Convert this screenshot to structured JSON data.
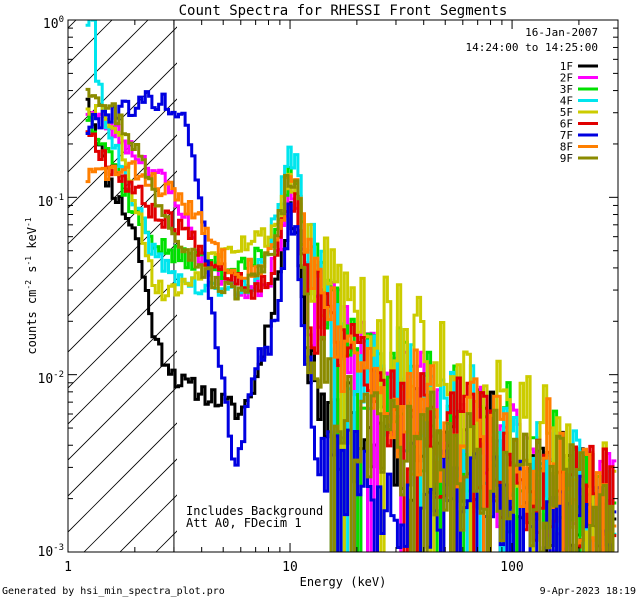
{
  "chart_data": {
    "type": "line",
    "title": "Count Spectra for RHESSI Front Segments",
    "xlabel": "Energy (keV)",
    "ylabel_parts": [
      "counts cm",
      "-2",
      " s",
      "-1",
      " keV",
      "-1"
    ],
    "xscale": "log",
    "yscale": "log",
    "xlim": [
      1,
      300
    ],
    "ylim": [
      0.001,
      1
    ],
    "x_ticks": [
      {
        "value": 1,
        "label": "1"
      },
      {
        "value": 10,
        "label": "10"
      },
      {
        "value": 100,
        "label": "100"
      }
    ],
    "y_ticks": [
      {
        "value": 0.001,
        "base": "10",
        "exp": "-3"
      },
      {
        "value": 0.01,
        "base": "10",
        "exp": "-2"
      },
      {
        "value": 0.1,
        "base": "10",
        "exp": "-1"
      },
      {
        "value": 1,
        "base": "10",
        "exp": "0"
      }
    ],
    "shaded_region": {
      "x0": 1,
      "x1": 3,
      "pattern": "diagonal-hatch"
    },
    "date": "16-Jan-2007",
    "time_range": "14:24:00 to 14:25:00",
    "annotations": [
      "Includes Background",
      "Att A0, FDecim 1"
    ],
    "legend_position": "top-right",
    "series": [
      {
        "name": "1F",
        "color": "#000000",
        "anchors": [
          [
            1.2,
            0.42
          ],
          [
            1.5,
            0.13
          ],
          [
            2.0,
            0.065
          ],
          [
            2.5,
            0.015
          ],
          [
            3.2,
            0.009
          ],
          [
            4.0,
            0.008
          ],
          [
            5.0,
            0.007
          ],
          [
            6.0,
            0.006
          ],
          [
            7.0,
            0.009
          ],
          [
            8.0,
            0.02
          ],
          [
            9.0,
            0.04
          ],
          [
            10.0,
            0.08
          ],
          [
            10.8,
            0.07
          ],
          [
            12.0,
            0.012
          ],
          [
            15.0,
            0.006
          ],
          [
            20.0,
            0.0045
          ],
          [
            30.0,
            0.004
          ],
          [
            40.0,
            0.004
          ],
          [
            60.0,
            0.004
          ],
          [
            100.0,
            0.003
          ],
          [
            150.0,
            0.0025
          ],
          [
            200.0,
            0.002
          ],
          [
            280.0,
            0.0012
          ]
        ],
        "seed": 11
      },
      {
        "name": "2F",
        "color": "#ff00ff",
        "anchors": [
          [
            1.2,
            0.32
          ],
          [
            1.5,
            0.26
          ],
          [
            2.0,
            0.18
          ],
          [
            2.5,
            0.14
          ],
          [
            3.2,
            0.09
          ],
          [
            4.0,
            0.045
          ],
          [
            5.0,
            0.035
          ],
          [
            6.0,
            0.03
          ],
          [
            7.0,
            0.03
          ],
          [
            8.0,
            0.035
          ],
          [
            9.0,
            0.06
          ],
          [
            10.0,
            0.12
          ],
          [
            10.8,
            0.1
          ],
          [
            12.0,
            0.03
          ],
          [
            15.0,
            0.02
          ],
          [
            20.0,
            0.012
          ],
          [
            30.0,
            0.008
          ],
          [
            40.0,
            0.006
          ],
          [
            60.0,
            0.004
          ],
          [
            100.0,
            0.003
          ],
          [
            150.0,
            0.0022
          ],
          [
            200.0,
            0.0018
          ],
          [
            280.0,
            0.0015
          ]
        ],
        "seed": 23
      },
      {
        "name": "3F",
        "color": "#00e000",
        "anchors": [
          [
            1.2,
            0.3
          ],
          [
            1.5,
            0.2
          ],
          [
            2.0,
            0.08
          ],
          [
            2.5,
            0.055
          ],
          [
            3.2,
            0.045
          ],
          [
            4.0,
            0.045
          ],
          [
            5.0,
            0.04
          ],
          [
            6.0,
            0.04
          ],
          [
            7.0,
            0.045
          ],
          [
            8.0,
            0.05
          ],
          [
            9.0,
            0.08
          ],
          [
            10.0,
            0.15
          ],
          [
            10.8,
            0.13
          ],
          [
            12.0,
            0.04
          ],
          [
            15.0,
            0.02
          ],
          [
            20.0,
            0.012
          ],
          [
            30.0,
            0.008
          ],
          [
            40.0,
            0.006
          ],
          [
            60.0,
            0.005
          ],
          [
            100.0,
            0.004
          ],
          [
            150.0,
            0.0028
          ],
          [
            200.0,
            0.002
          ],
          [
            280.0,
            0.0015
          ]
        ],
        "seed": 37
      },
      {
        "name": "4F",
        "color": "#00e5ee",
        "anchors": [
          [
            1.2,
            1.0
          ],
          [
            1.3,
            1.0
          ],
          [
            1.35,
            0.5
          ],
          [
            1.6,
            0.2
          ],
          [
            2.0,
            0.09
          ],
          [
            2.5,
            0.045
          ],
          [
            3.2,
            0.035
          ],
          [
            4.0,
            0.03
          ],
          [
            5.0,
            0.03
          ],
          [
            6.0,
            0.03
          ],
          [
            7.0,
            0.035
          ],
          [
            8.0,
            0.05
          ],
          [
            9.0,
            0.09
          ],
          [
            10.0,
            0.18
          ],
          [
            10.8,
            0.15
          ],
          [
            12.0,
            0.05
          ],
          [
            15.0,
            0.02
          ],
          [
            20.0,
            0.01
          ],
          [
            30.0,
            0.008
          ],
          [
            40.0,
            0.007
          ],
          [
            60.0,
            0.005
          ],
          [
            100.0,
            0.004
          ],
          [
            150.0,
            0.0028
          ],
          [
            200.0,
            0.002
          ],
          [
            280.0,
            0.0015
          ]
        ],
        "seed": 41
      },
      {
        "name": "5F",
        "color": "#cccc00",
        "anchors": [
          [
            1.2,
            0.34
          ],
          [
            1.5,
            0.3
          ],
          [
            1.8,
            0.18
          ],
          [
            2.0,
            0.1
          ],
          [
            2.5,
            0.03
          ],
          [
            3.2,
            0.03
          ],
          [
            4.0,
            0.04
          ],
          [
            5.0,
            0.055
          ],
          [
            6.0,
            0.055
          ],
          [
            7.0,
            0.06
          ],
          [
            8.0,
            0.06
          ],
          [
            9.0,
            0.08
          ],
          [
            10.0,
            0.14
          ],
          [
            10.8,
            0.1
          ],
          [
            12.0,
            0.04
          ],
          [
            15.0,
            0.03
          ],
          [
            20.0,
            0.025
          ],
          [
            30.0,
            0.018
          ],
          [
            40.0,
            0.012
          ],
          [
            60.0,
            0.008
          ],
          [
            100.0,
            0.005
          ],
          [
            150.0,
            0.004
          ],
          [
            200.0,
            0.003
          ],
          [
            280.0,
            0.002
          ]
        ],
        "seed": 53
      },
      {
        "name": "6F",
        "color": "#e00000",
        "anchors": [
          [
            1.2,
            0.26
          ],
          [
            1.5,
            0.16
          ],
          [
            2.0,
            0.11
          ],
          [
            2.5,
            0.08
          ],
          [
            3.2,
            0.07
          ],
          [
            4.0,
            0.05
          ],
          [
            5.0,
            0.04
          ],
          [
            6.0,
            0.035
          ],
          [
            7.0,
            0.03
          ],
          [
            8.0,
            0.035
          ],
          [
            9.0,
            0.06
          ],
          [
            10.0,
            0.1
          ],
          [
            10.8,
            0.09
          ],
          [
            12.0,
            0.03
          ],
          [
            15.0,
            0.015
          ],
          [
            20.0,
            0.01
          ],
          [
            30.0,
            0.006
          ],
          [
            40.0,
            0.005
          ],
          [
            60.0,
            0.004
          ],
          [
            100.0,
            0.003
          ],
          [
            150.0,
            0.0025
          ],
          [
            200.0,
            0.002
          ],
          [
            280.0,
            0.0015
          ]
        ],
        "seed": 67
      },
      {
        "name": "7F",
        "color": "#0000e0",
        "anchors": [
          [
            1.2,
            0.24
          ],
          [
            1.5,
            0.3
          ],
          [
            2.0,
            0.33
          ],
          [
            2.5,
            0.36
          ],
          [
            3.2,
            0.3
          ],
          [
            3.6,
            0.2
          ],
          [
            4.0,
            0.09
          ],
          [
            4.5,
            0.02
          ],
          [
            5.0,
            0.01
          ],
          [
            5.5,
            0.003
          ],
          [
            6.0,
            0.004
          ],
          [
            6.5,
            0.007
          ],
          [
            7.0,
            0.012
          ],
          [
            8.0,
            0.014
          ],
          [
            9.0,
            0.03
          ],
          [
            10.0,
            0.08
          ],
          [
            10.8,
            0.06
          ],
          [
            12.0,
            0.008
          ],
          [
            15.0,
            0.003
          ],
          [
            20.0,
            0.0025
          ],
          [
            30.0,
            0.002
          ],
          [
            40.0,
            0.002
          ],
          [
            60.0,
            0.0018
          ],
          [
            100.0,
            0.0016
          ],
          [
            150.0,
            0.0014
          ],
          [
            200.0,
            0.0013
          ],
          [
            280.0,
            0.0012
          ]
        ],
        "seed": 79
      },
      {
        "name": "8F",
        "color": "#ff7f00",
        "anchors": [
          [
            1.2,
            0.13
          ],
          [
            1.5,
            0.14
          ],
          [
            2.0,
            0.14
          ],
          [
            2.5,
            0.12
          ],
          [
            3.2,
            0.1
          ],
          [
            4.0,
            0.07
          ],
          [
            5.0,
            0.045
          ],
          [
            6.0,
            0.04
          ],
          [
            7.0,
            0.04
          ],
          [
            8.0,
            0.045
          ],
          [
            9.0,
            0.07
          ],
          [
            10.0,
            0.15
          ],
          [
            10.8,
            0.13
          ],
          [
            12.0,
            0.04
          ],
          [
            15.0,
            0.02
          ],
          [
            20.0,
            0.01
          ],
          [
            30.0,
            0.007
          ],
          [
            40.0,
            0.006
          ],
          [
            60.0,
            0.005
          ],
          [
            100.0,
            0.004
          ],
          [
            150.0,
            0.003
          ],
          [
            200.0,
            0.0022
          ],
          [
            280.0,
            0.0015
          ]
        ],
        "seed": 83
      },
      {
        "name": "9F",
        "color": "#8b8b00",
        "anchors": [
          [
            1.2,
            0.44
          ],
          [
            1.5,
            0.35
          ],
          [
            2.0,
            0.2
          ],
          [
            2.5,
            0.1
          ],
          [
            3.2,
            0.06
          ],
          [
            4.0,
            0.04
          ],
          [
            5.0,
            0.03
          ],
          [
            6.0,
            0.03
          ],
          [
            7.0,
            0.035
          ],
          [
            8.0,
            0.045
          ],
          [
            9.0,
            0.08
          ],
          [
            10.0,
            0.14
          ],
          [
            10.8,
            0.12
          ],
          [
            12.0,
            0.02
          ],
          [
            15.0,
            0.008
          ],
          [
            20.0,
            0.005
          ],
          [
            30.0,
            0.004
          ],
          [
            40.0,
            0.004
          ],
          [
            60.0,
            0.003
          ],
          [
            100.0,
            0.0025
          ],
          [
            150.0,
            0.002
          ],
          [
            200.0,
            0.0016
          ],
          [
            280.0,
            0.0012
          ]
        ],
        "seed": 97
      }
    ]
  },
  "footer": {
    "generated_by": "Generated by hsi_min_spectra_plot.pro",
    "timestamp": "9-Apr-2023 18:19"
  }
}
